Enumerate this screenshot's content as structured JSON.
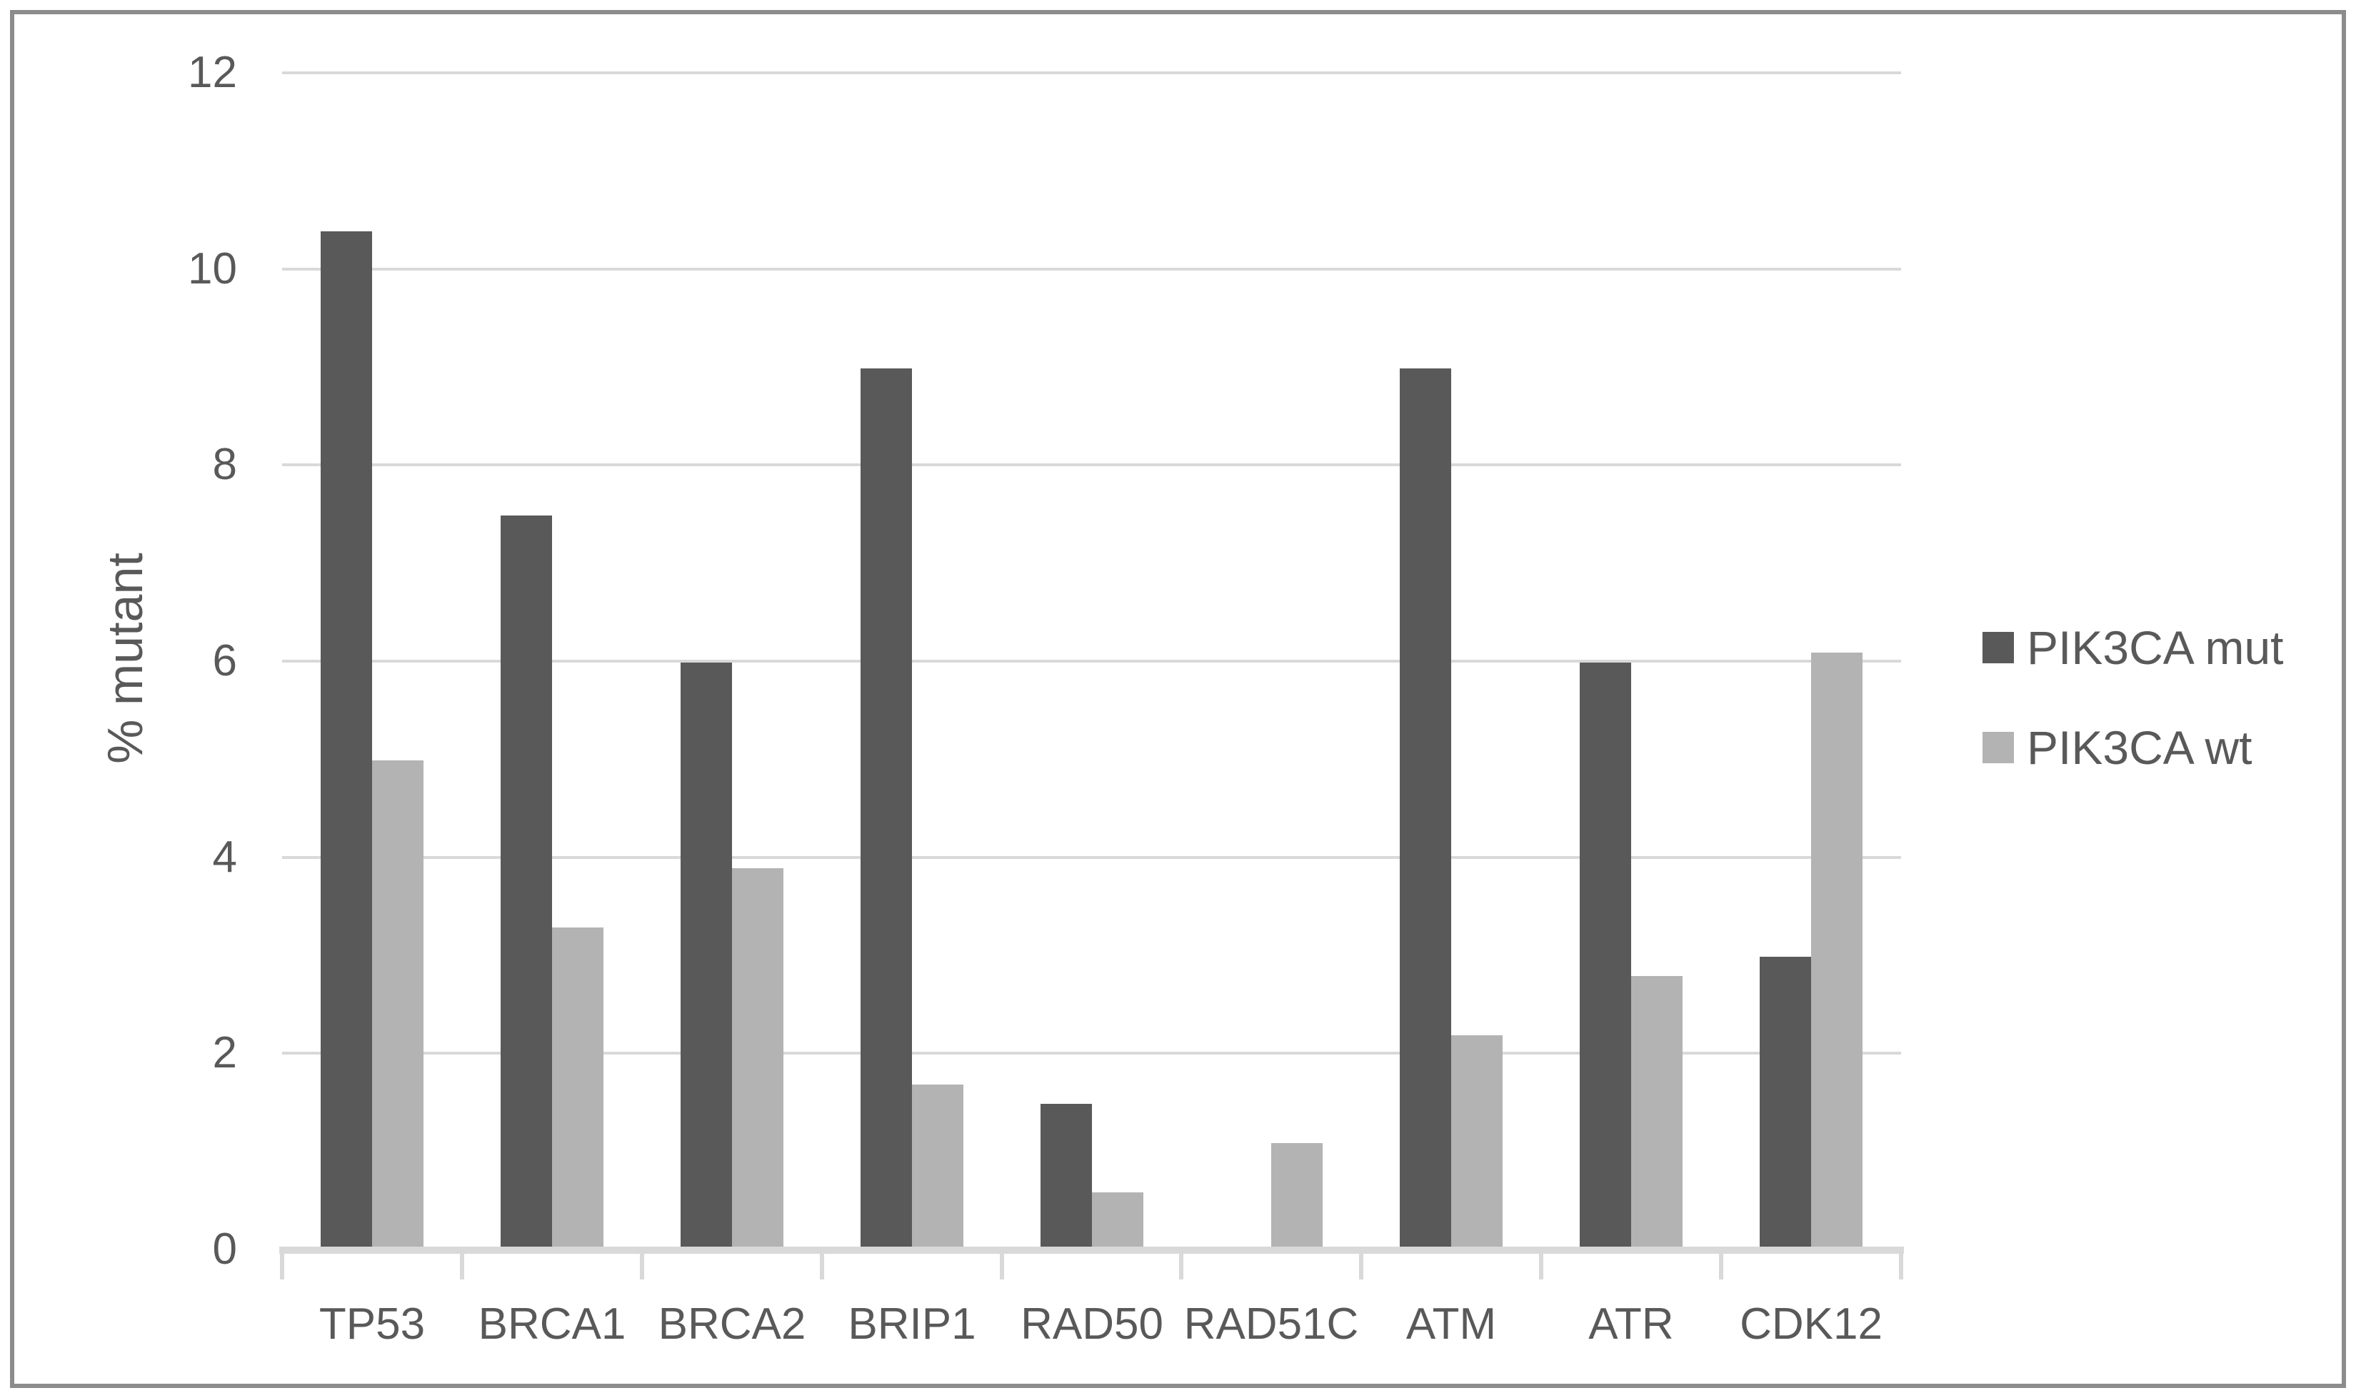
{
  "chart_data": {
    "type": "bar",
    "title": "",
    "xlabel": "",
    "ylabel": "% mutant",
    "ylim": [
      0,
      12
    ],
    "yticks": [
      0,
      2,
      4,
      6,
      8,
      10,
      12
    ],
    "grid": true,
    "legend_position": "right",
    "categories": [
      "TP53",
      "BRCA1",
      "BRCA2",
      "BRIP1",
      "RAD50",
      "RAD51C",
      "ATM",
      "ATR",
      "CDK12"
    ],
    "series": [
      {
        "name": "PIK3CA mut",
        "color": "#595959",
        "values": [
          10.4,
          7.5,
          6.0,
          9.0,
          1.5,
          0,
          9.0,
          6.0,
          3.0
        ]
      },
      {
        "name": "PIK3CA wt",
        "color": "#b3b3b3",
        "values": [
          5.0,
          3.3,
          3.9,
          1.7,
          0.6,
          1.1,
          2.2,
          2.8,
          6.1
        ]
      }
    ]
  },
  "colors": {
    "gridline": "#d9d9d9",
    "axis_line": "#d9d9d9",
    "tick_mark": "#d9d9d9",
    "text": "#595959",
    "frame_border": "#8c8c8c",
    "background": "#ffffff"
  }
}
